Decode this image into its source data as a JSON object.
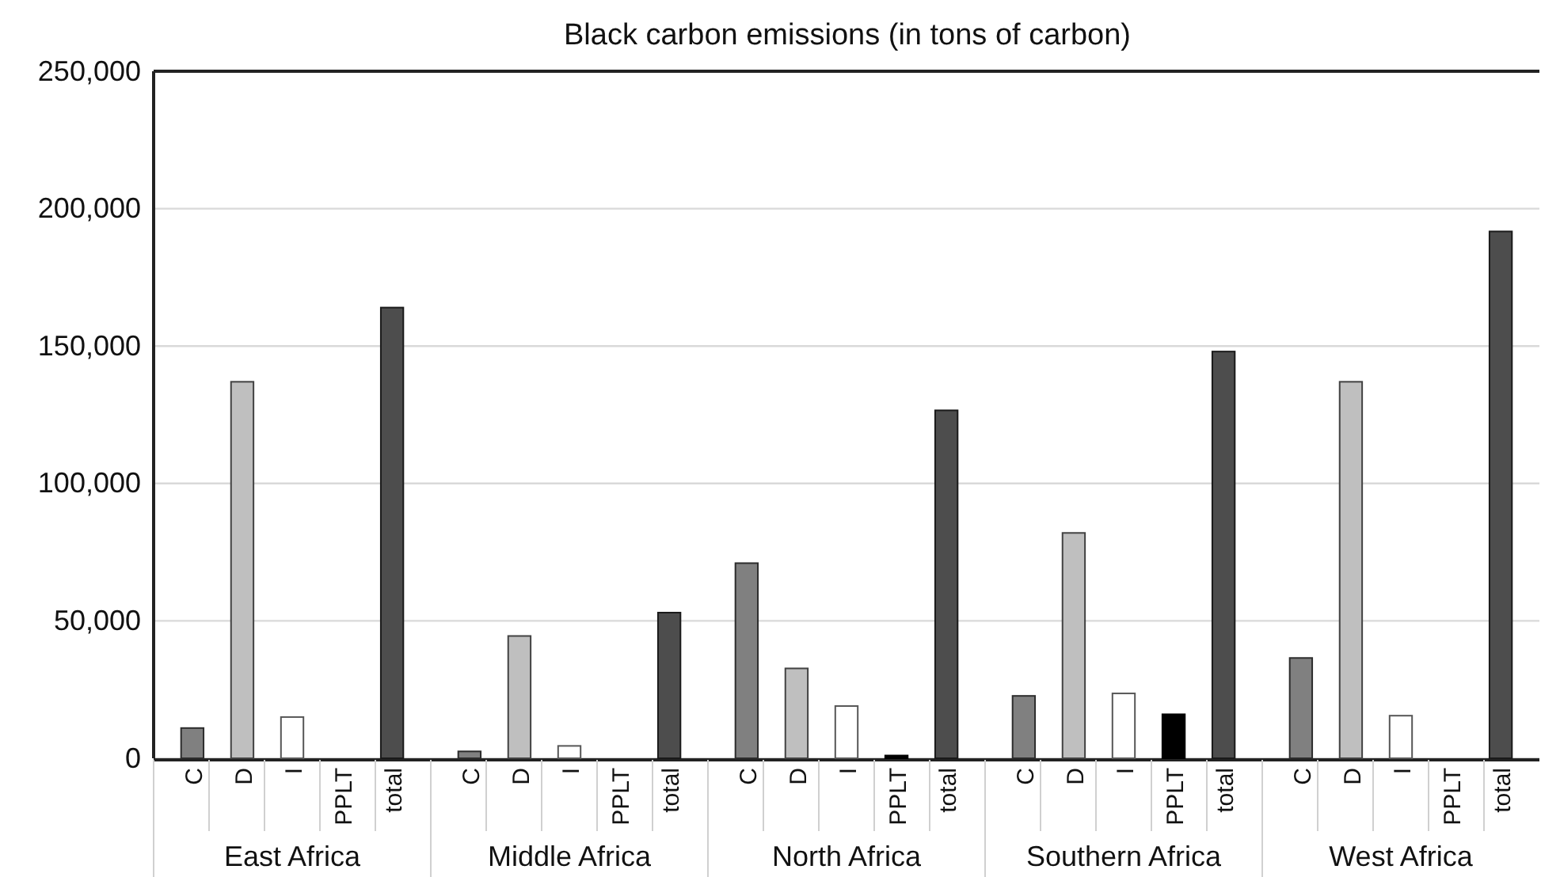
{
  "chart_data": {
    "type": "bar",
    "title": "Black carbon emissions (in tons of carbon)",
    "categories": [
      "East Africa",
      "Middle Africa",
      "North Africa",
      "Southern Africa",
      "West Africa"
    ],
    "series": [
      {
        "name": "C",
        "color": "#808080",
        "values": [
          11000,
          2500,
          71000,
          22700,
          36500
        ]
      },
      {
        "name": "D",
        "color": "#bfbfbf",
        "values": [
          137000,
          44500,
          32700,
          82000,
          137000
        ]
      },
      {
        "name": "I",
        "color": "#ffffff",
        "values": [
          15000,
          4500,
          19000,
          23600,
          15500
        ]
      },
      {
        "name": "PPLT",
        "color": "#000000",
        "values": [
          0,
          0,
          1000,
          16000,
          0
        ]
      },
      {
        "name": "total",
        "color": "#4d4d4d",
        "values": [
          164000,
          53000,
          126600,
          148000,
          191700
        ]
      }
    ],
    "ylim": [
      0,
      250000
    ],
    "yticks": [
      {
        "value": 0,
        "label": "0"
      },
      {
        "value": 50000,
        "label": "50,000"
      },
      {
        "value": 100000,
        "label": "100,000"
      },
      {
        "value": 150000,
        "label": "150,000"
      },
      {
        "value": 200000,
        "label": "200,000"
      },
      {
        "value": 250000,
        "label": "250,000"
      }
    ],
    "grid": "y",
    "legend": false
  }
}
